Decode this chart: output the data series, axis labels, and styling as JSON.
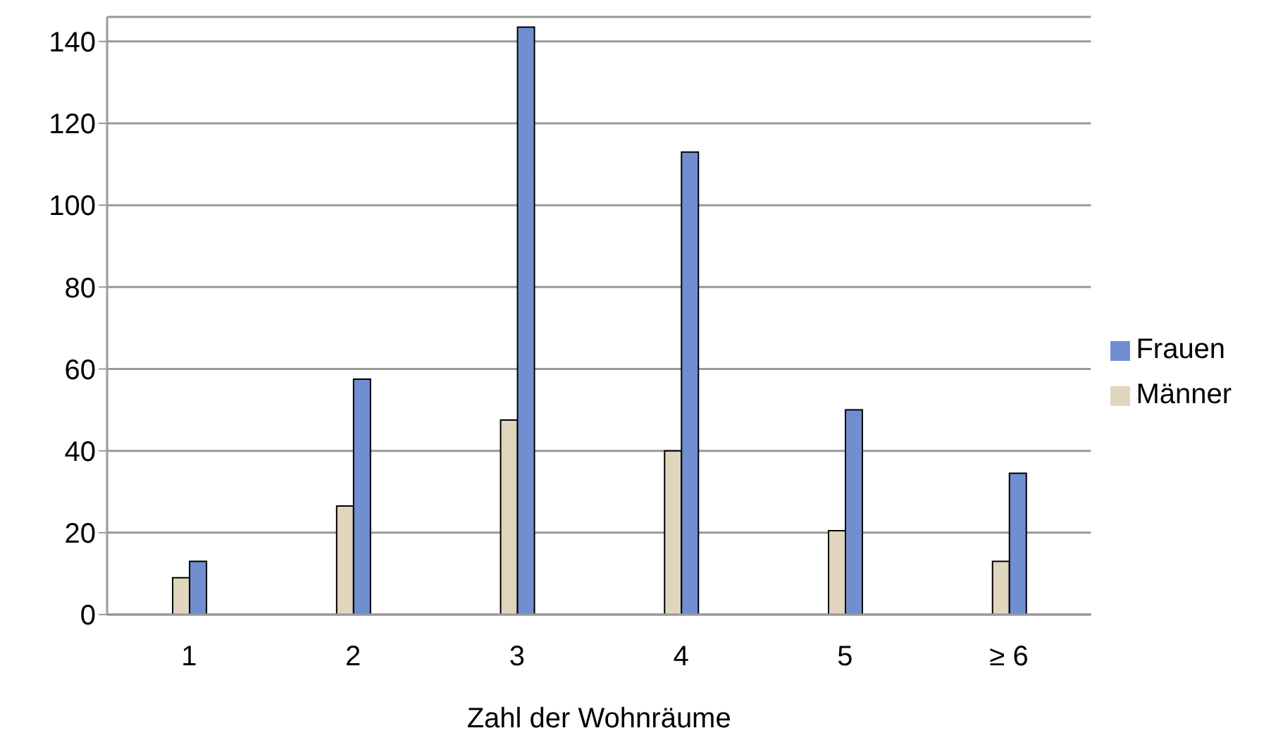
{
  "chart_data": {
    "type": "bar",
    "xlabel": "Zahl der Wohnräume",
    "categories": [
      "1",
      "2",
      "3",
      "4",
      "5",
      "≥ 6"
    ],
    "series": [
      {
        "name": "Männer",
        "color": "#e0d5bd",
        "values": [
          9,
          26.5,
          47.5,
          40,
          20.5,
          13
        ]
      },
      {
        "name": "Frauen",
        "color": "#6f8fd0",
        "values": [
          13,
          57.5,
          143.5,
          113,
          50,
          34.5
        ]
      }
    ],
    "ylim": [
      0,
      146
    ],
    "yticks": [
      0,
      20,
      40,
      60,
      80,
      100,
      120,
      140
    ],
    "grid": "y",
    "legend": "right"
  }
}
